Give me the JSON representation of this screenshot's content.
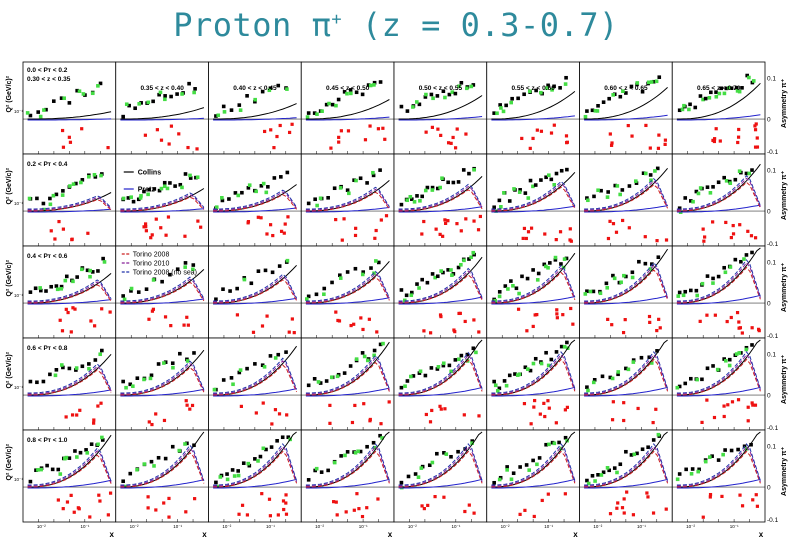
{
  "title": {
    "text": "Proton π",
    "superscript": "+",
    "suffix": " (z = 0.3-0.7)"
  },
  "axis_labels": {
    "x": "x",
    "y_left": "Q² (GeV/c)²",
    "y_right": "Asymmetry π⁺"
  },
  "z_bins": [
    "0.30 < z < 0.35",
    "0.35 < z < 0.40",
    "0.40 < z < 0.45",
    "0.45 < z < 0.50",
    "0.50 < z < 0.55",
    "0.55 < z < 0.60",
    "0.60 < z < 0.65",
    "0.65 < z < 0.70"
  ],
  "pt_bins": [
    "0.0 < P_T < 0.2",
    "0.2 < P_T < 0.4",
    "0.4 < P_T < 0.6",
    "0.6 < P_T < 0.8",
    "0.8 < P_T < 1.0"
  ],
  "right_ticks": [
    "0.1",
    "0",
    "-0.1"
  ],
  "x_ticks": [
    "10⁻²",
    "10⁻¹"
  ],
  "y_ticks": [
    "10⁻¹",
    "10"
  ],
  "legend": {
    "models": [
      "Collins",
      "Pretz"
    ],
    "torino": [
      "Torino 2008",
      "Torino 2010",
      "Torino 2008 (no sea)"
    ]
  },
  "colors": {
    "title": "#2e8a9c",
    "black_points": "#000000",
    "green_points": "#44dd44",
    "red_points": "#ee1111",
    "collins": "#000000",
    "pretz": "#2222cc",
    "torino_2008": "#cc2222",
    "torino_2010": "#882299",
    "torino_nosea": "#2233aa"
  },
  "chart_data": {
    "type": "scatter",
    "layout": "grid",
    "rows": 5,
    "cols": 8,
    "row_labels": [
      "0.0 < P_T < 0.2",
      "0.2 < P_T < 0.4",
      "0.4 < P_T < 0.6",
      "0.6 < P_T < 0.8",
      "0.8 < P_T < 1.0"
    ],
    "col_labels": [
      "0.30 < z < 0.35",
      "0.35 < z < 0.40",
      "0.40 < z < 0.45",
      "0.45 < z < 0.50",
      "0.50 < z < 0.55",
      "0.55 < z < 0.60",
      "0.60 < z < 0.65",
      "0.65 < z < 0.70"
    ],
    "xscale": "log",
    "xlabel": "x",
    "ylabel_left": "Q² (GeV/c)²",
    "ylabel_right": "Asymmetry π⁺",
    "right_axis_range": [
      -0.12,
      0.12
    ],
    "series": [
      {
        "name": "Collins",
        "kind": "model",
        "color": "#000000"
      },
      {
        "name": "Pretz",
        "kind": "model",
        "color": "#2222cc"
      },
      {
        "name": "Torino 2008",
        "kind": "model",
        "color": "#cc2222"
      },
      {
        "name": "Torino 2010",
        "kind": "model",
        "color": "#882299"
      },
      {
        "name": "Torino 2008 (no sea)",
        "kind": "model",
        "color": "#2233aa"
      }
    ],
    "grid": false,
    "legend_placement": "inside panels (row 2 col 2, row 3 col 1)"
  }
}
